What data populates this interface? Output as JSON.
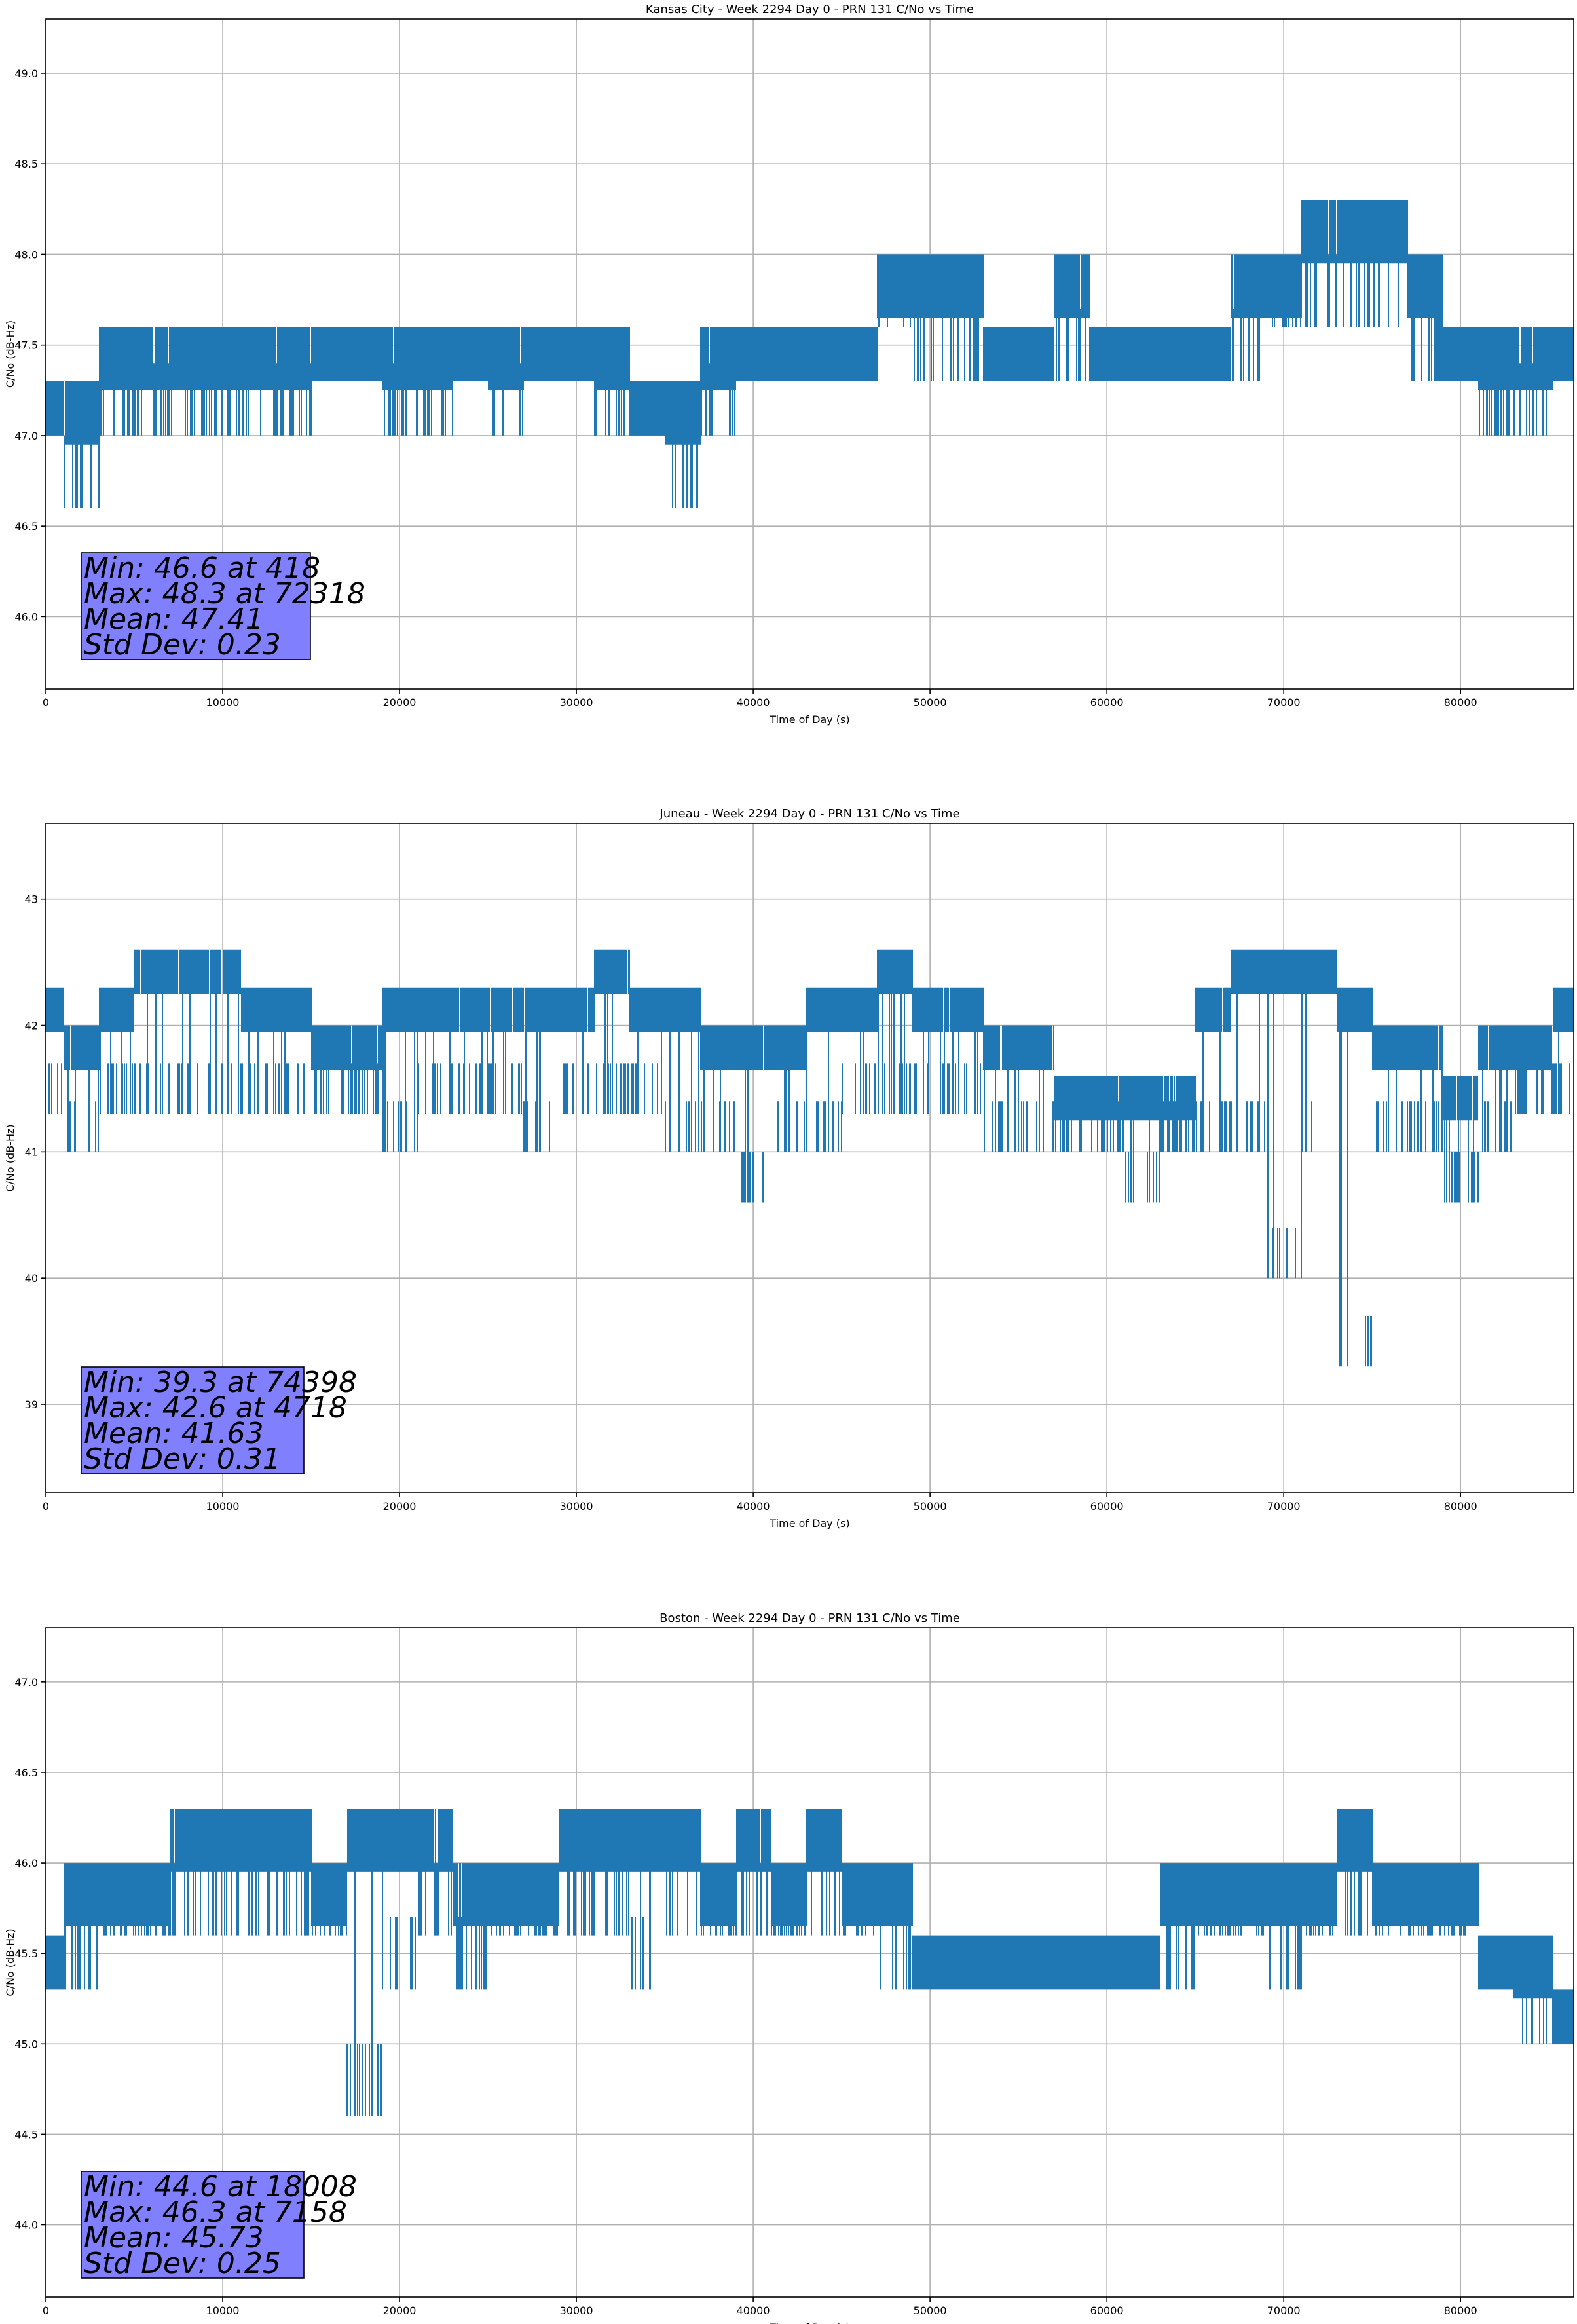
{
  "colors": {
    "series": "#1f77b4",
    "stats_box": "#8080ff"
  },
  "chart_data": [
    {
      "type": "line",
      "title": "Kansas City - Week 2294 Day 0 - PRN 131 C/No vs Time",
      "xlabel": "Time of Day (s)",
      "ylabel": "C/No (dB-Hz)",
      "xlim": [
        0,
        86400
      ],
      "ylim": [
        45.6,
        49.3
      ],
      "xticks": [
        0,
        10000,
        20000,
        30000,
        40000,
        50000,
        60000,
        70000,
        80000
      ],
      "yticks": [
        46.0,
        46.5,
        47.0,
        47.5,
        48.0,
        48.5,
        49.0
      ],
      "ytick_labels": [
        "46.0",
        "46.5",
        "47.0",
        "47.5",
        "48.0",
        "48.5",
        "49.0"
      ],
      "grid": true,
      "stats": [
        "Min: 46.6 at 418",
        "Max: 48.3 at 72318",
        "Mean: 47.41",
        "Std Dev: 0.23"
      ],
      "series": [
        {
          "x": [
            0,
            2000,
            4000,
            6000,
            8000,
            10000,
            12000,
            14000,
            16000,
            18000,
            20000,
            22000,
            24000,
            26000,
            28000,
            30000,
            32000,
            34000,
            36000,
            38000,
            40000,
            42000,
            44000,
            46000,
            48000,
            50000,
            52000,
            54000,
            56000,
            58000,
            60000,
            62000,
            64000,
            66000,
            68000,
            70000,
            72000,
            74000,
            76000,
            78000,
            80000,
            82000,
            84000,
            86400
          ],
          "low": [
            47.0,
            46.6,
            47.0,
            47.0,
            47.0,
            47.0,
            47.0,
            47.0,
            47.3,
            47.3,
            47.0,
            47.0,
            47.3,
            47.0,
            47.3,
            47.3,
            47.0,
            47.0,
            46.6,
            47.0,
            47.3,
            47.3,
            47.3,
            47.3,
            47.6,
            47.3,
            47.3,
            47.3,
            47.3,
            47.3,
            47.3,
            47.3,
            47.3,
            47.3,
            47.3,
            47.6,
            47.6,
            47.6,
            47.6,
            47.3,
            47.3,
            47.0,
            47.0,
            47.3
          ],
          "high": [
            47.3,
            47.3,
            47.6,
            47.6,
            47.6,
            47.6,
            47.6,
            47.6,
            47.6,
            47.6,
            47.6,
            47.6,
            47.6,
            47.6,
            47.6,
            47.6,
            47.6,
            47.3,
            47.3,
            47.6,
            47.6,
            47.6,
            47.6,
            47.6,
            48.0,
            48.0,
            48.0,
            47.6,
            47.6,
            48.0,
            47.6,
            47.6,
            47.6,
            47.6,
            48.0,
            48.0,
            48.3,
            48.3,
            48.3,
            48.0,
            47.6,
            47.6,
            47.6,
            47.6
          ]
        }
      ]
    },
    {
      "type": "line",
      "title": "Juneau - Week 2294 Day 0 - PRN 131 C/No vs Time",
      "xlabel": "Time of Day (s)",
      "ylabel": "C/No (dB-Hz)",
      "xlim": [
        0,
        86400
      ],
      "ylim": [
        38.3,
        43.6
      ],
      "xticks": [
        0,
        10000,
        20000,
        30000,
        40000,
        50000,
        60000,
        70000,
        80000
      ],
      "yticks": [
        39,
        40,
        41,
        42,
        43
      ],
      "ytick_labels": [
        "39",
        "40",
        "41",
        "42",
        "43"
      ],
      "grid": true,
      "stats": [
        "Min: 39.3 at 74398",
        "Max: 42.6 at 4718",
        "Mean: 41.63",
        "Std Dev: 0.31"
      ],
      "series": [
        {
          "x": [
            0,
            2000,
            4000,
            6000,
            8000,
            10000,
            12000,
            14000,
            16000,
            18000,
            20000,
            22000,
            24000,
            26000,
            28000,
            30000,
            32000,
            34000,
            36000,
            38000,
            40000,
            42000,
            44000,
            46000,
            48000,
            50000,
            52000,
            54000,
            56000,
            58000,
            60000,
            62000,
            64000,
            66000,
            68000,
            70000,
            72000,
            74000,
            76000,
            78000,
            80000,
            82000,
            84000,
            86400
          ],
          "low": [
            41.3,
            41.0,
            41.3,
            41.3,
            41.3,
            41.3,
            41.3,
            41.3,
            41.3,
            41.3,
            41.0,
            41.3,
            41.3,
            41.3,
            41.0,
            41.3,
            41.3,
            41.3,
            41.0,
            41.0,
            40.6,
            41.0,
            41.0,
            41.3,
            41.3,
            41.3,
            41.3,
            41.0,
            41.0,
            41.0,
            41.0,
            40.6,
            41.0,
            41.0,
            41.0,
            40.0,
            41.0,
            39.3,
            41.0,
            41.0,
            40.6,
            41.0,
            41.3,
            41.3
          ],
          "high": [
            42.3,
            42.0,
            42.3,
            42.6,
            42.6,
            42.6,
            42.3,
            42.3,
            42.0,
            42.0,
            42.3,
            42.3,
            42.3,
            42.3,
            42.3,
            42.3,
            42.6,
            42.3,
            42.3,
            42.0,
            42.0,
            42.0,
            42.3,
            42.3,
            42.6,
            42.3,
            42.3,
            42.0,
            42.0,
            41.6,
            41.6,
            41.6,
            41.6,
            42.3,
            42.6,
            42.6,
            42.6,
            42.3,
            42.0,
            42.0,
            41.6,
            42.0,
            42.0,
            42.3
          ]
        }
      ]
    },
    {
      "type": "line",
      "title": "Boston - Week 2294 Day 0 - PRN 131 C/No vs Time",
      "xlabel": "Time of Day (s)",
      "ylabel": "C/No (dB-Hz)",
      "xlim": [
        0,
        86400
      ],
      "ylim": [
        43.6,
        47.3
      ],
      "xticks": [
        0,
        10000,
        20000,
        30000,
        40000,
        50000,
        60000,
        70000,
        80000
      ],
      "yticks": [
        44.0,
        44.5,
        45.0,
        45.5,
        46.0,
        46.5,
        47.0
      ],
      "ytick_labels": [
        "44.0",
        "44.5",
        "45.0",
        "45.5",
        "46.0",
        "46.5",
        "47.0"
      ],
      "grid": true,
      "stats": [
        "Min: 44.6 at 18008",
        "Max: 46.3 at 7158",
        "Mean: 45.73",
        "Std Dev: 0.25"
      ],
      "series": [
        {
          "x": [
            0,
            2000,
            4000,
            6000,
            8000,
            10000,
            12000,
            14000,
            16000,
            18000,
            20000,
            22000,
            24000,
            26000,
            28000,
            30000,
            32000,
            34000,
            36000,
            38000,
            40000,
            42000,
            44000,
            46000,
            48000,
            50000,
            52000,
            54000,
            56000,
            58000,
            60000,
            62000,
            64000,
            66000,
            68000,
            70000,
            72000,
            74000,
            76000,
            78000,
            80000,
            82000,
            84000,
            86400
          ],
          "low": [
            45.3,
            45.3,
            45.6,
            45.6,
            45.6,
            45.6,
            45.6,
            45.6,
            45.6,
            44.6,
            45.3,
            45.6,
            45.3,
            45.6,
            45.6,
            45.6,
            45.6,
            45.3,
            45.6,
            45.6,
            45.6,
            45.6,
            45.6,
            45.6,
            45.3,
            45.3,
            45.3,
            45.3,
            45.3,
            45.3,
            45.3,
            45.3,
            45.3,
            45.6,
            45.6,
            45.3,
            45.6,
            45.6,
            45.6,
            45.6,
            45.6,
            45.3,
            45.0,
            45.0
          ],
          "high": [
            45.6,
            46.0,
            46.0,
            46.0,
            46.3,
            46.3,
            46.3,
            46.3,
            46.0,
            46.3,
            46.3,
            46.3,
            46.0,
            46.0,
            46.0,
            46.3,
            46.3,
            46.3,
            46.3,
            46.0,
            46.3,
            46.0,
            46.3,
            46.0,
            46.0,
            45.6,
            45.6,
            45.6,
            45.6,
            45.6,
            45.6,
            45.6,
            46.0,
            46.0,
            46.0,
            46.0,
            46.0,
            46.3,
            46.0,
            46.0,
            46.0,
            45.6,
            45.6,
            45.3
          ]
        }
      ]
    }
  ]
}
